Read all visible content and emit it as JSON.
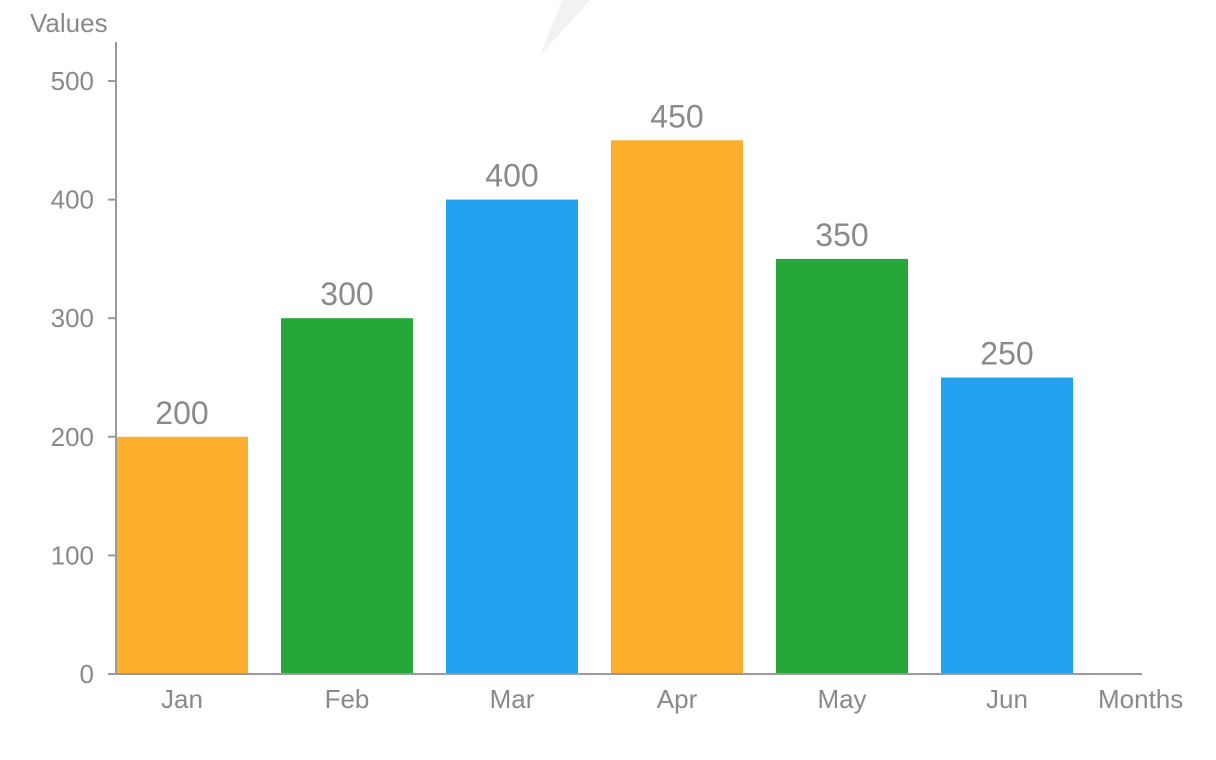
{
  "chart_data": {
    "type": "bar",
    "categories": [
      "Jan",
      "Feb",
      "Mar",
      "Apr",
      "May",
      "Jun"
    ],
    "values": [
      200,
      300,
      400,
      450,
      350,
      250
    ],
    "data_labels": [
      "200",
      "300",
      "400",
      "450",
      "350",
      "250"
    ],
    "bar_colors": [
      "#FDAE2C",
      "#25A73A",
      "#23A1EE",
      "#FDAE2C",
      "#25A73A",
      "#23A1EE"
    ],
    "yticks": [
      0,
      100,
      200,
      300,
      400,
      500
    ],
    "ytick_labels": [
      "0",
      "100",
      "200",
      "300",
      "400",
      "500"
    ],
    "ylim": [
      0,
      500
    ],
    "xlabel": "Months",
    "ylabel": "Values",
    "grid": false,
    "legend": "none",
    "axis_color": "#9a9a9a",
    "text_color": "#8a8a8a"
  }
}
